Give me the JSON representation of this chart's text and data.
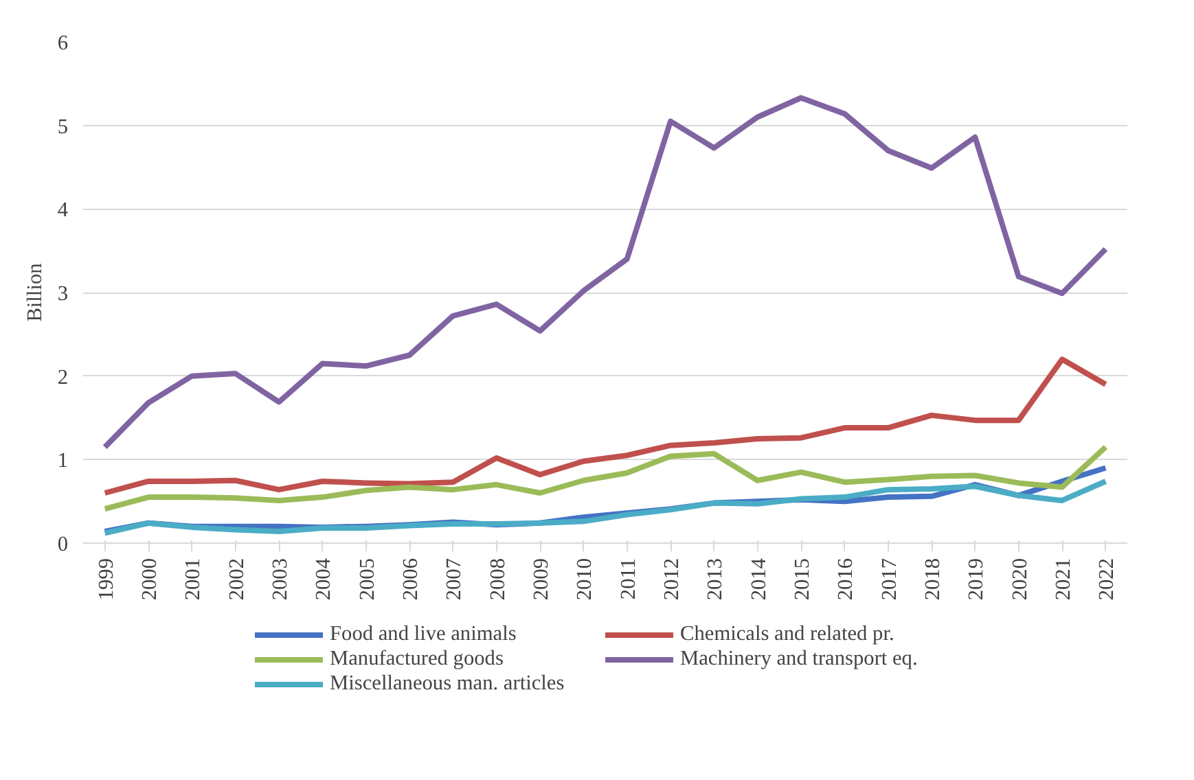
{
  "chart_data": {
    "type": "line",
    "ylabel": "Billion",
    "categories": [
      "1999",
      "2000",
      "2001",
      "2002",
      "2003",
      "2004",
      "2005",
      "2006",
      "2007",
      "2008",
      "2009",
      "2010",
      "2011",
      "2012",
      "2013",
      "2014",
      "2015",
      "2016",
      "2017",
      "2018",
      "2019",
      "2020",
      "2021",
      "2022"
    ],
    "ylim": [
      0,
      6
    ],
    "yticks": [
      0,
      1,
      2,
      3,
      4,
      5,
      6
    ],
    "grid": "y",
    "legend": "bottom",
    "marker": "none",
    "line_style": "solid",
    "series": [
      {
        "name": "Food and live animals",
        "color": "#4472c4",
        "values": [
          0.14,
          0.24,
          0.2,
          0.2,
          0.2,
          0.19,
          0.2,
          0.22,
          0.25,
          0.22,
          0.24,
          0.31,
          0.36,
          0.41,
          0.48,
          0.5,
          0.52,
          0.5,
          0.55,
          0.56,
          0.7,
          0.57,
          0.74,
          0.9
        ]
      },
      {
        "name": "Chemicals and related pr.",
        "color": "#c0504d",
        "values": [
          0.6,
          0.74,
          0.74,
          0.75,
          0.64,
          0.74,
          0.72,
          0.71,
          0.73,
          1.02,
          0.82,
          0.98,
          1.05,
          1.17,
          1.2,
          1.25,
          1.26,
          1.38,
          1.38,
          1.53,
          1.47,
          1.47,
          2.2,
          1.9
        ]
      },
      {
        "name": "Manufactured goods",
        "color": "#9bbb59",
        "values": [
          0.41,
          0.55,
          0.55,
          0.54,
          0.51,
          0.55,
          0.63,
          0.67,
          0.64,
          0.7,
          0.6,
          0.75,
          0.84,
          1.04,
          1.07,
          0.75,
          0.85,
          0.73,
          0.76,
          0.8,
          0.81,
          0.72,
          0.67,
          1.15
        ]
      },
      {
        "name": "Machinery and transport eq.",
        "color": "#8064a2",
        "values": [
          1.15,
          1.68,
          2.0,
          2.03,
          1.69,
          2.15,
          2.12,
          2.25,
          2.72,
          2.86,
          2.54,
          3.02,
          3.4,
          5.05,
          4.73,
          5.1,
          5.33,
          5.14,
          4.7,
          4.49,
          4.86,
          3.19,
          2.99,
          3.52
        ]
      },
      {
        "name": "Miscellaneous man. articles",
        "color": "#4bacc6",
        "values": [
          0.12,
          0.24,
          0.19,
          0.16,
          0.14,
          0.18,
          0.18,
          0.21,
          0.23,
          0.23,
          0.24,
          0.26,
          0.34,
          0.4,
          0.48,
          0.47,
          0.53,
          0.55,
          0.64,
          0.65,
          0.68,
          0.57,
          0.51,
          0.74
        ]
      }
    ]
  }
}
